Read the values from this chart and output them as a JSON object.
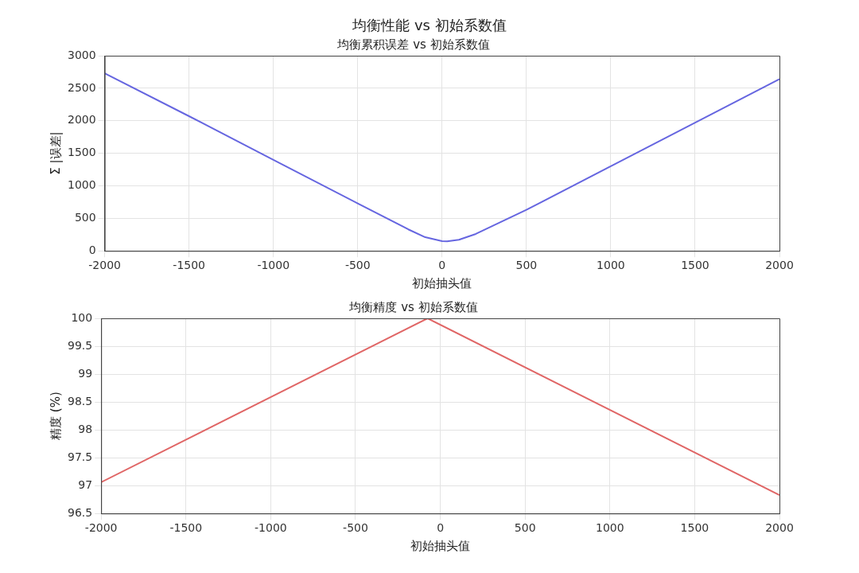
{
  "chart_data": [
    {
      "type": "line",
      "annotations": [
        "均衡性能 vs 初始系数值"
      ],
      "title": "均衡累积误差 vs 初始系数值",
      "xlabel": "初始抽头值",
      "ylabel": "Σ |误差|",
      "x": [
        -2000,
        -1500,
        -1000,
        -500,
        -200,
        -100,
        0,
        30,
        100,
        200,
        500,
        1000,
        1500,
        2000
      ],
      "values": [
        2730,
        2070,
        1400,
        730,
        330,
        210,
        150,
        145,
        170,
        260,
        630,
        1300,
        1970,
        2640
      ],
      "color": "#6666e0",
      "marker": "none",
      "xlim": [
        -2000,
        2000
      ],
      "xticks": [
        -2000,
        -1500,
        -1000,
        -500,
        0,
        500,
        1000,
        1500,
        2000
      ],
      "ylim": [
        0,
        3000
      ],
      "yticks": [
        0,
        500,
        1000,
        1500,
        2000,
        2500,
        3000
      ],
      "grid": true
    },
    {
      "type": "line",
      "title": "均衡精度 vs 初始系数值",
      "xlabel": "初始抽头值",
      "ylabel": "精度 (%)",
      "x": [
        -2000,
        -75,
        2000
      ],
      "values": [
        97.06,
        100,
        96.83
      ],
      "color": "#e06666",
      "marker": "none",
      "xlim": [
        -2000,
        2000
      ],
      "xticks": [
        -2000,
        -1500,
        -1000,
        -500,
        0,
        500,
        1000,
        1500,
        2000
      ],
      "ylim": [
        96.5,
        100
      ],
      "yticks": [
        96.5,
        97,
        97.5,
        98,
        98.5,
        99,
        99.5,
        100
      ],
      "grid": true
    }
  ]
}
